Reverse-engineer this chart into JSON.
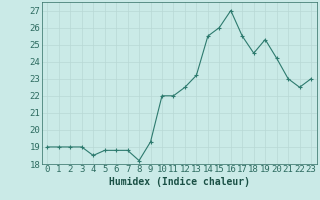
{
  "x": [
    0,
    1,
    2,
    3,
    4,
    5,
    6,
    7,
    8,
    9,
    10,
    11,
    12,
    13,
    14,
    15,
    16,
    17,
    18,
    19,
    20,
    21,
    22,
    23
  ],
  "y": [
    19.0,
    19.0,
    19.0,
    19.0,
    18.5,
    18.8,
    18.8,
    18.8,
    18.2,
    19.3,
    22.0,
    22.0,
    22.5,
    23.2,
    25.5,
    26.0,
    27.0,
    25.5,
    24.5,
    25.3,
    24.2,
    23.0,
    22.5,
    23.0
  ],
  "line_color": "#2d7a6e",
  "marker": "+",
  "bg_color": "#caeae7",
  "grid_color_minor": "#b8d8d5",
  "grid_color_major": "#b0ceca",
  "xlabel": "Humidex (Indice chaleur)",
  "ylim": [
    18,
    27.5
  ],
  "xlim": [
    -0.5,
    23.5
  ],
  "yticks": [
    18,
    19,
    20,
    21,
    22,
    23,
    24,
    25,
    26,
    27
  ],
  "xticks": [
    0,
    1,
    2,
    3,
    4,
    5,
    6,
    7,
    8,
    9,
    10,
    11,
    12,
    13,
    14,
    15,
    16,
    17,
    18,
    19,
    20,
    21,
    22,
    23
  ],
  "tick_color": "#2d6b60",
  "label_color": "#1a5045",
  "font_size_xlabel": 7,
  "font_size_tick": 6.5
}
